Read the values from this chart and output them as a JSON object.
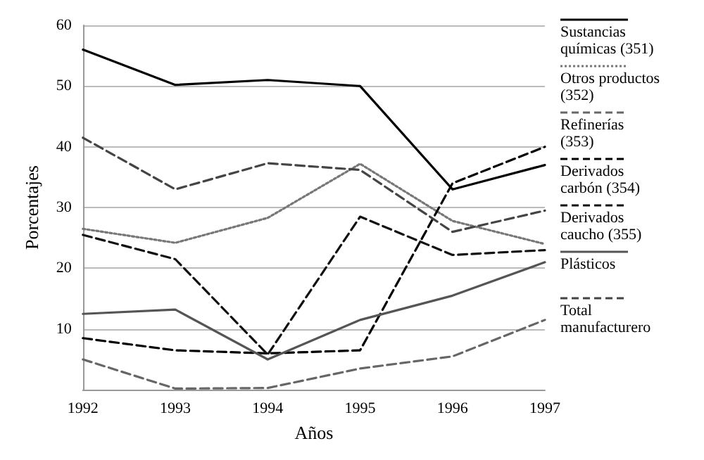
{
  "chart_data": {
    "type": "line",
    "xlabel": "Años",
    "ylabel": "Porcentajes",
    "x": [
      1992,
      1993,
      1994,
      1995,
      1996,
      1997
    ],
    "xlim": [
      1992,
      1997
    ],
    "xticks": [
      1992,
      1993,
      1994,
      1995,
      1996,
      1997
    ],
    "ylim": [
      0,
      60
    ],
    "yticks": [
      10,
      20,
      30,
      40,
      50,
      60
    ],
    "grid": "y",
    "legend": "right",
    "marker": "none",
    "series": [
      {
        "name": "Sustancias químicas (351)",
        "color": "#000000",
        "line_style": "solid",
        "values": [
          56,
          50.2,
          51,
          50,
          33,
          37
        ]
      },
      {
        "name": "Otros productos (352)",
        "color": "#777777",
        "line_style": "dotted",
        "values": [
          26.5,
          24.2,
          28.3,
          37.2,
          27.8,
          24
        ]
      },
      {
        "name": "Refinerías (353)",
        "color": "#666666",
        "line_style": "dashed",
        "values": [
          5,
          0.2,
          0.3,
          3.5,
          5.5,
          11.5
        ]
      },
      {
        "name": "Derivados carbón (354)",
        "color": "#000000",
        "line_style": "dashed",
        "values": [
          8.5,
          6.5,
          6,
          6.5,
          34,
          40
        ]
      },
      {
        "name": "Derivados caucho (355)",
        "color": "#111111",
        "line_style": "dashed",
        "values": [
          25.5,
          21.5,
          5.8,
          28.5,
          22.2,
          23
        ]
      },
      {
        "name": "Plásticos",
        "color": "#555555",
        "line_style": "solid",
        "values": [
          12.5,
          13.2,
          5,
          11.5,
          15.5,
          21
        ]
      },
      {
        "name": "Total manufacturero",
        "color": "#444444",
        "line_style": "dashed",
        "values": [
          41.5,
          33,
          37.3,
          36.2,
          26,
          29.5
        ]
      }
    ]
  }
}
